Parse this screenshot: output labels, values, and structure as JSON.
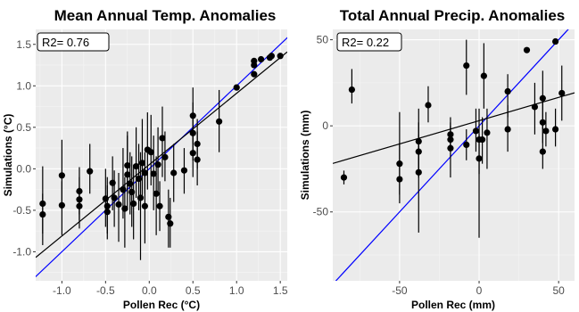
{
  "colors": {
    "panel_bg": "#ebebeb",
    "grid_major": "#ffffff",
    "grid_minor": "#f5f5f5",
    "points": "#000000",
    "one_to_one_line": "#0000ff",
    "fit_line": "#000000",
    "tick_label": "#4d4d4d"
  },
  "chart_data": [
    {
      "type": "scatter",
      "title": "Mean Annual Temp. Anomalies",
      "xlabel": "Pollen Rec (°C)",
      "ylabel": "Simulations (°C)",
      "xlim": [
        -1.3,
        1.58
      ],
      "ylim": [
        -1.35,
        1.68
      ],
      "xticks": [
        -1.0,
        -0.5,
        0.0,
        0.5,
        1.0,
        1.5
      ],
      "xtick_labels": [
        "-1.0",
        "-0.5",
        "0.0",
        "0.5",
        "1.0",
        "1.5"
      ],
      "yticks": [
        -1.0,
        -0.5,
        0.0,
        0.5,
        1.0,
        1.5
      ],
      "ytick_labels": [
        "-1.0",
        "-0.5",
        "0.0",
        "0.5",
        "1.0",
        "1.5"
      ],
      "r2_label": "R2= 0.76",
      "one_to_one": true,
      "fit_line": {
        "intercept": 0.05,
        "slope": 0.86
      },
      "grid": true,
      "points": [
        {
          "x": -1.22,
          "y": -0.42,
          "lo": -0.78,
          "hi": 0.03
        },
        {
          "x": -1.22,
          "y": -0.55,
          "lo": -0.92,
          "hi": -0.3
        },
        {
          "x": -1.0,
          "y": -0.08,
          "lo": -0.42,
          "hi": 0.35
        },
        {
          "x": -1.0,
          "y": -0.44,
          "lo": -0.8,
          "hi": -0.15
        },
        {
          "x": -0.8,
          "y": -0.27,
          "lo": -0.55,
          "hi": 0.02
        },
        {
          "x": -0.8,
          "y": -0.37,
          "lo": -0.62,
          "hi": -0.1
        },
        {
          "x": -0.8,
          "y": -0.45,
          "lo": -0.72,
          "hi": -0.22
        },
        {
          "x": -0.68,
          "y": -0.03,
          "lo": -0.3,
          "hi": 0.3
        },
        {
          "x": -0.5,
          "y": -0.36,
          "lo": -0.7,
          "hi": 0.0
        },
        {
          "x": -0.48,
          "y": -0.45,
          "lo": -0.78,
          "hi": -0.1
        },
        {
          "x": -0.48,
          "y": -0.52,
          "lo": -0.85,
          "hi": -0.2
        },
        {
          "x": -0.42,
          "y": -0.17,
          "lo": -0.5,
          "hi": 0.15
        },
        {
          "x": -0.4,
          "y": -0.35,
          "lo": -0.7,
          "hi": -0.02
        },
        {
          "x": -0.35,
          "y": -0.43,
          "lo": -0.88,
          "hi": -0.05
        },
        {
          "x": -0.3,
          "y": -0.25,
          "lo": -0.6,
          "hi": 0.25
        },
        {
          "x": -0.28,
          "y": -0.48,
          "lo": -0.95,
          "hi": -0.1
        },
        {
          "x": -0.25,
          "y": -0.07,
          "lo": -0.5,
          "hi": 0.4
        },
        {
          "x": -0.25,
          "y": 0.04,
          "lo": -0.3,
          "hi": 0.45
        },
        {
          "x": -0.22,
          "y": -0.18,
          "lo": -0.55,
          "hi": 0.2
        },
        {
          "x": -0.2,
          "y": -0.28,
          "lo": -0.7,
          "hi": 0.15
        },
        {
          "x": -0.18,
          "y": -0.42,
          "lo": -0.85,
          "hi": 0.05
        },
        {
          "x": -0.15,
          "y": 0.03,
          "lo": -0.35,
          "hi": 0.5
        },
        {
          "x": -0.12,
          "y": -0.12,
          "lo": -0.5,
          "hi": 0.3
        },
        {
          "x": -0.1,
          "y": -0.35,
          "lo": -1.1,
          "hi": 0.2
        },
        {
          "x": -0.08,
          "y": 0.07,
          "lo": -0.35,
          "hi": 0.6
        },
        {
          "x": -0.05,
          "y": -0.05,
          "lo": -0.3,
          "hi": 0.2
        },
        {
          "x": -0.05,
          "y": -0.45,
          "lo": -0.9,
          "hi": -0.05
        },
        {
          "x": -0.02,
          "y": 0.23,
          "lo": -0.25,
          "hi": 0.68
        },
        {
          "x": 0.02,
          "y": 0.2,
          "lo": -0.2,
          "hi": 0.65
        },
        {
          "x": 0.05,
          "y": -0.06,
          "lo": -0.5,
          "hi": 0.4
        },
        {
          "x": 0.08,
          "y": -0.3,
          "lo": -0.8,
          "hi": 0.15
        },
        {
          "x": 0.1,
          "y": 0.05,
          "lo": -0.3,
          "hi": 0.5
        },
        {
          "x": 0.12,
          "y": -0.45,
          "lo": -0.75,
          "hi": -0.15
        },
        {
          "x": 0.15,
          "y": 0.37,
          "lo": -0.1,
          "hi": 0.75
        },
        {
          "x": 0.18,
          "y": 0.14,
          "lo": -0.15,
          "hi": 0.45
        },
        {
          "x": 0.22,
          "y": -0.58,
          "lo": -0.95,
          "hi": -0.25
        },
        {
          "x": 0.24,
          "y": -0.66,
          "lo": -0.95,
          "hi": -0.35
        },
        {
          "x": 0.28,
          "y": -0.05,
          "lo": -0.4,
          "hi": 0.3
        },
        {
          "x": 0.4,
          "y": -0.02,
          "lo": -0.3,
          "hi": 0.25
        },
        {
          "x": 0.5,
          "y": 0.43,
          "lo": 0.1,
          "hi": 0.8
        },
        {
          "x": 0.5,
          "y": 0.64,
          "lo": 0.3,
          "hi": 0.98
        },
        {
          "x": 0.5,
          "y": 0.19,
          "lo": -0.1,
          "hi": 0.5
        },
        {
          "x": 0.55,
          "y": 0.11,
          "lo": -0.2,
          "hi": 0.45
        },
        {
          "x": 0.55,
          "y": 0.3,
          "lo": 0.0,
          "hi": 0.6
        },
        {
          "x": 0.8,
          "y": 0.57,
          "lo": 0.2,
          "hi": 0.95
        },
        {
          "x": 1.0,
          "y": 0.98,
          "lo": 0.98,
          "hi": 0.98
        },
        {
          "x": 1.2,
          "y": 1.14,
          "lo": 1.14,
          "hi": 1.14
        },
        {
          "x": 1.2,
          "y": 1.25,
          "lo": 1.25,
          "hi": 1.25
        },
        {
          "x": 1.2,
          "y": 1.3,
          "lo": 1.3,
          "hi": 1.3
        },
        {
          "x": 1.28,
          "y": 1.32,
          "lo": 1.32,
          "hi": 1.32
        },
        {
          "x": 1.38,
          "y": 1.34,
          "lo": 1.34,
          "hi": 1.34
        },
        {
          "x": 1.4,
          "y": 1.36,
          "lo": 1.36,
          "hi": 1.36
        },
        {
          "x": 1.5,
          "y": 1.36,
          "lo": 1.36,
          "hi": 1.36
        }
      ]
    },
    {
      "type": "scatter",
      "title": "Total Annual Precip. Anomalies",
      "xlabel": "Pollen Rec (mm)",
      "ylabel": "Simulations (mm)",
      "xlim": [
        -92,
        60
      ],
      "ylim": [
        -90,
        56
      ],
      "xticks": [
        -50,
        0,
        50
      ],
      "xtick_labels": [
        "-50",
        "0",
        "50"
      ],
      "yticks": [
        -50,
        0,
        50
      ],
      "ytick_labels": [
        "-50",
        "0",
        "50"
      ],
      "r2_label": "R2= 0.22",
      "one_to_one": true,
      "fit_line": {
        "intercept": 3.0,
        "slope": 0.27
      },
      "grid": true,
      "points": [
        {
          "x": -85,
          "y": -30,
          "lo": -34,
          "hi": -26
        },
        {
          "x": -80,
          "y": 21,
          "lo": 13,
          "hi": 33
        },
        {
          "x": -50,
          "y": -22,
          "lo": -40,
          "hi": 8
        },
        {
          "x": -50,
          "y": -31,
          "lo": -45,
          "hi": -10
        },
        {
          "x": -38,
          "y": -9,
          "lo": -25,
          "hi": 10
        },
        {
          "x": -38,
          "y": -15,
          "lo": -30,
          "hi": 2
        },
        {
          "x": -38,
          "y": -27,
          "lo": -62,
          "hi": -5
        },
        {
          "x": -32,
          "y": 12,
          "lo": 2,
          "hi": 23
        },
        {
          "x": -18,
          "y": -5,
          "lo": -12,
          "hi": 2
        },
        {
          "x": -18,
          "y": -8,
          "lo": -15,
          "hi": 0
        },
        {
          "x": -18,
          "y": -13,
          "lo": -30,
          "hi": 5
        },
        {
          "x": -8,
          "y": 35,
          "lo": 18,
          "hi": 50
        },
        {
          "x": -8,
          "y": -11,
          "lo": -20,
          "hi": -2
        },
        {
          "x": -2,
          "y": -3,
          "lo": -15,
          "hi": 10
        },
        {
          "x": 0,
          "y": -8,
          "lo": -28,
          "hi": 10
        },
        {
          "x": 0,
          "y": -19,
          "lo": -65,
          "hi": -5
        },
        {
          "x": 2,
          "y": -8,
          "lo": -22,
          "hi": 5
        },
        {
          "x": 3,
          "y": 29,
          "lo": 10,
          "hi": 48
        },
        {
          "x": 5,
          "y": -4,
          "lo": -25,
          "hi": 10
        },
        {
          "x": 18,
          "y": 20,
          "lo": 5,
          "hi": 30
        },
        {
          "x": 18,
          "y": -2,
          "lo": -15,
          "hi": 12
        },
        {
          "x": 30,
          "y": 44,
          "lo": 44,
          "hi": 44
        },
        {
          "x": 35,
          "y": 11,
          "lo": -5,
          "hi": 25
        },
        {
          "x": 40,
          "y": 16,
          "lo": -2,
          "hi": 32
        },
        {
          "x": 40,
          "y": 2,
          "lo": -10,
          "hi": 15
        },
        {
          "x": 40,
          "y": -15,
          "lo": -25,
          "hi": 0
        },
        {
          "x": 42,
          "y": -3,
          "lo": -12,
          "hi": 8
        },
        {
          "x": 48,
          "y": 49,
          "lo": 49,
          "hi": 49
        },
        {
          "x": 48,
          "y": -2,
          "lo": -12,
          "hi": 10
        },
        {
          "x": 52,
          "y": 19,
          "lo": 3,
          "hi": 35
        }
      ]
    }
  ]
}
